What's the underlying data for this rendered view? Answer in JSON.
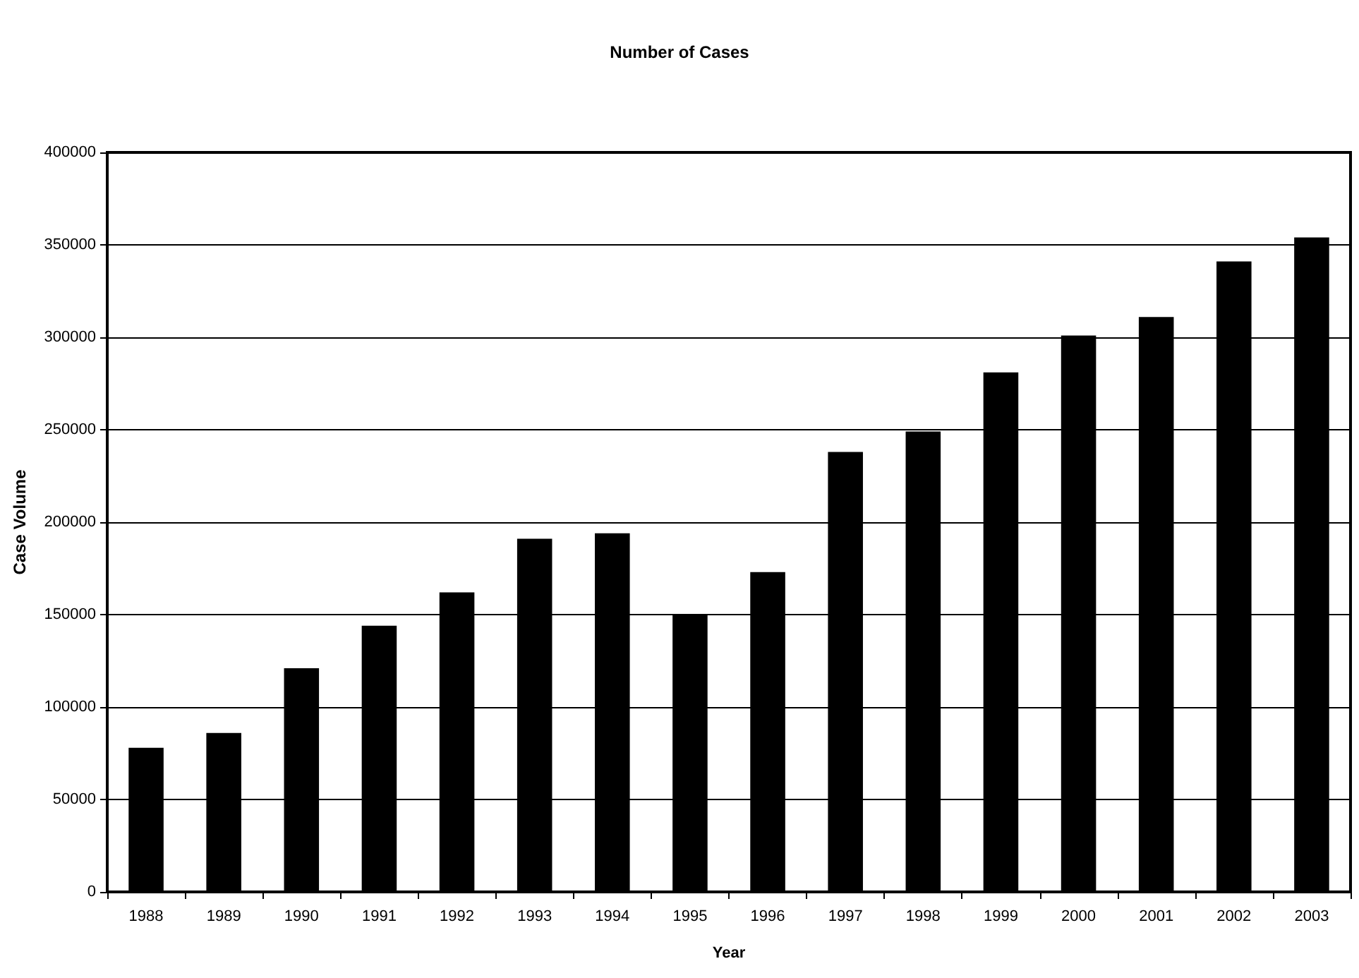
{
  "chart_data": {
    "type": "bar",
    "title": "Number of Cases",
    "xlabel": "Year",
    "ylabel": "Case Volume",
    "categories": [
      "1988",
      "1989",
      "1990",
      "1991",
      "1992",
      "1993",
      "1994",
      "1995",
      "1996",
      "1997",
      "1998",
      "1999",
      "2000",
      "2001",
      "2002",
      "2003"
    ],
    "values": [
      78000,
      86000,
      121000,
      144000,
      162000,
      191000,
      194000,
      150000,
      173000,
      238000,
      249000,
      281000,
      301000,
      311000,
      341000,
      354000
    ],
    "color": "#000000",
    "ylim": [
      0,
      400000
    ],
    "yticks": [
      0,
      50000,
      100000,
      150000,
      200000,
      250000,
      300000,
      350000,
      400000
    ],
    "grid": "y"
  }
}
